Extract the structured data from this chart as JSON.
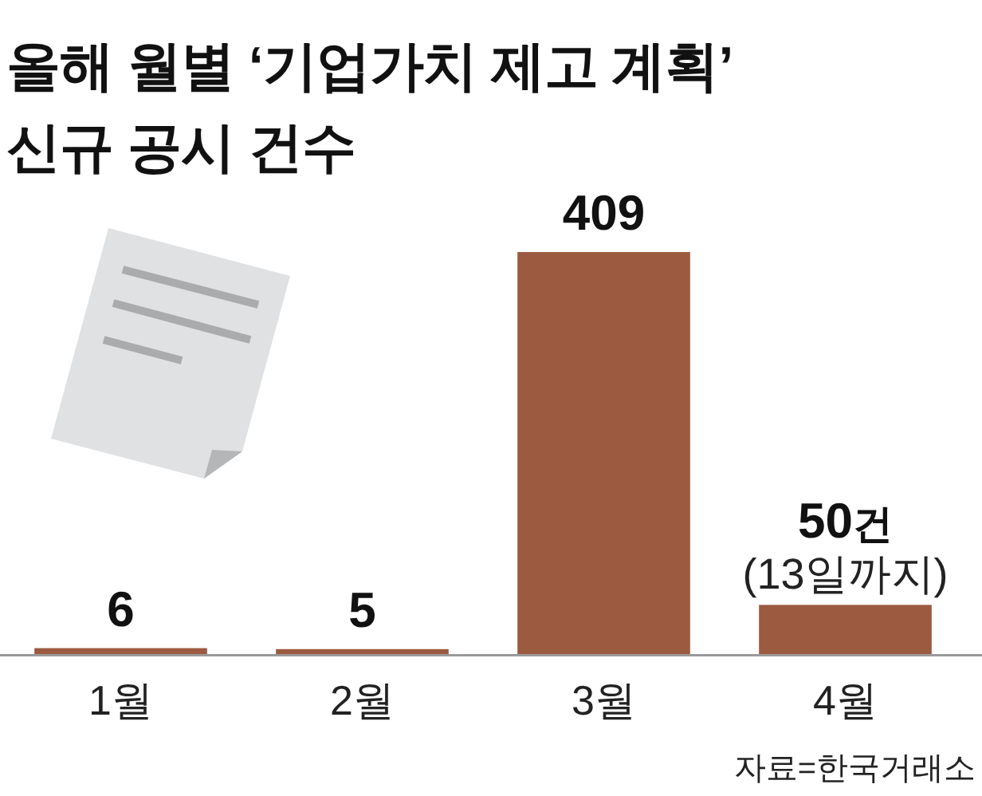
{
  "chart_data": {
    "type": "bar",
    "title": "올해 월별 ‘기업가치 제고 계획’ 신규 공시 건수",
    "categories": [
      "1월",
      "2월",
      "3월",
      "4월"
    ],
    "values": [
      6,
      5,
      409,
      50
    ],
    "color": "#9c5a40",
    "value_labels": [
      "6",
      "5",
      "409",
      "50건"
    ],
    "annotations": [
      {
        "text": "(13일까지)",
        "x": "4월",
        "y": 50
      },
      "자료=한국거래소"
    ]
  }
}
